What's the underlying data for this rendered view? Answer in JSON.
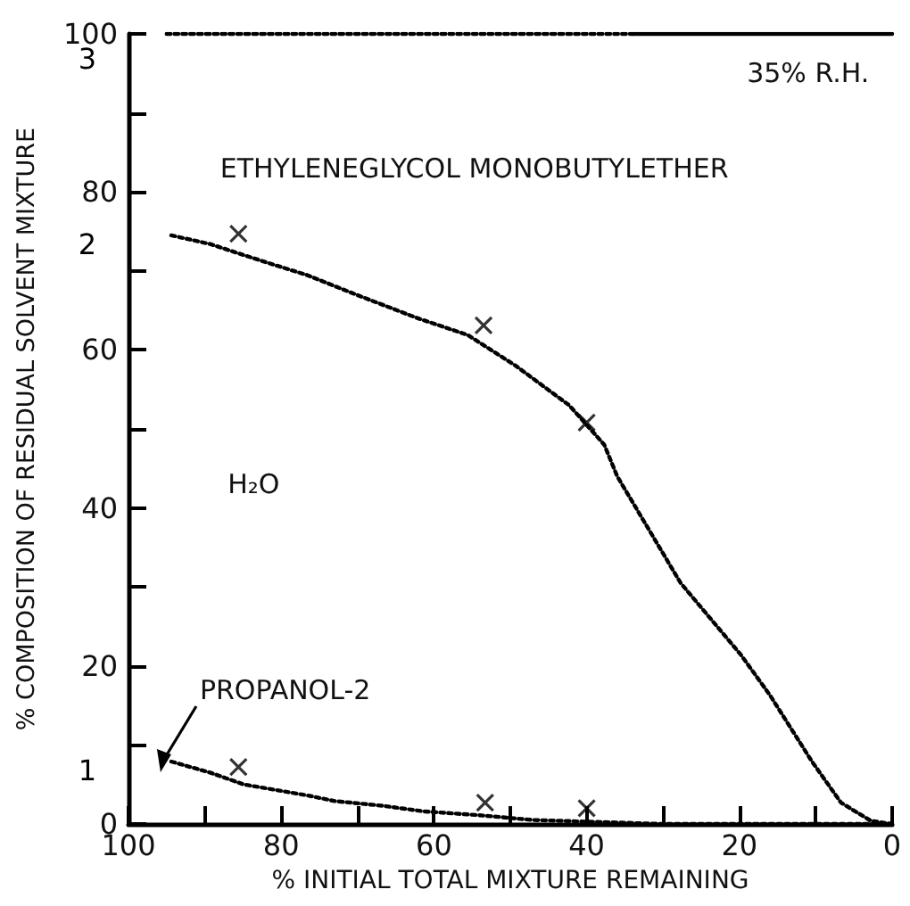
{
  "chart_data": {
    "type": "line",
    "xlabel": "% INITIAL TOTAL MIXTURE REMAINING",
    "ylabel": "% COMPOSITION OF RESIDUAL SOLVENT MIXTURE",
    "xlim": [
      100,
      0
    ],
    "xticks": [
      100,
      {
        "value": 90,
        "label": null
      },
      80,
      {
        "value": 70,
        "label": null
      },
      60,
      {
        "value": 50,
        "label": null
      },
      40,
      {
        "value": 30,
        "label": null
      },
      20,
      {
        "value": 10,
        "label": null
      },
      0
    ],
    "ylim": [
      0,
      100
    ],
    "yticks": [
      0,
      {
        "value": 10,
        "label": null
      },
      20,
      {
        "value": 30,
        "label": null
      },
      40,
      {
        "value": 50,
        "label": null
      },
      60,
      {
        "value": 70,
        "label": null
      },
      80,
      {
        "value": 90,
        "label": null
      },
      100
    ],
    "grid": false,
    "annotations": [
      "35% R.H.",
      "ETHYLENEGLYCOL MONOBUTYLETHER",
      "H₂O",
      {
        "text": "PROPANOL-2",
        "x": 94.4,
        "y": 7.9
      }
    ],
    "series": [
      {
        "name": "3",
        "color": "#000000",
        "line_style": "dotted",
        "marker": "none",
        "x": [
          95,
          34
        ],
        "values": [
          100,
          100
        ]
      },
      {
        "color": "#000000",
        "line_style": "solid",
        "marker": "none",
        "x": [
          34,
          0
        ],
        "values": [
          100,
          100
        ]
      },
      {
        "name": "2",
        "color": "#000000",
        "line_style": "dotted",
        "marker": "none",
        "x": [
          94.4,
          89.3,
          84.9,
          80.7,
          76.7,
          70.2,
          62.1,
          55.6,
          49.3,
          42.3,
          37.7,
          36,
          27.7,
          19.8,
          16,
          10.5,
          6.7,
          2.8,
          0
        ],
        "values": [
          74.5,
          73.4,
          72,
          70.7,
          69.5,
          67,
          64,
          61.9,
          58,
          53,
          48,
          44,
          30.5,
          21.4,
          16.3,
          7.9,
          2.7,
          0.4,
          0
        ]
      },
      {
        "name": "1",
        "color": "#000000",
        "line_style": "dotted",
        "marker": "none",
        "x": [
          94.4,
          89.3,
          84.9,
          80.7,
          76.5,
          73,
          66.7,
          61.4,
          54,
          47,
          30,
          0
        ],
        "values": [
          7.9,
          6.5,
          5,
          4.3,
          3.6,
          2.9,
          2.3,
          1.6,
          1.1,
          0.5,
          0,
          0
        ]
      },
      {
        "type": "scatter",
        "color": "#000000",
        "marker": "cross",
        "x": [
          85.6,
          53.5,
          40
        ],
        "values": [
          74.7,
          63.1,
          50.8
        ]
      },
      {
        "type": "scatter",
        "color": "#000000",
        "marker": "cross",
        "x": [
          85.6,
          53.3,
          40
        ],
        "values": [
          7.2,
          2.7,
          2
        ]
      }
    ]
  }
}
